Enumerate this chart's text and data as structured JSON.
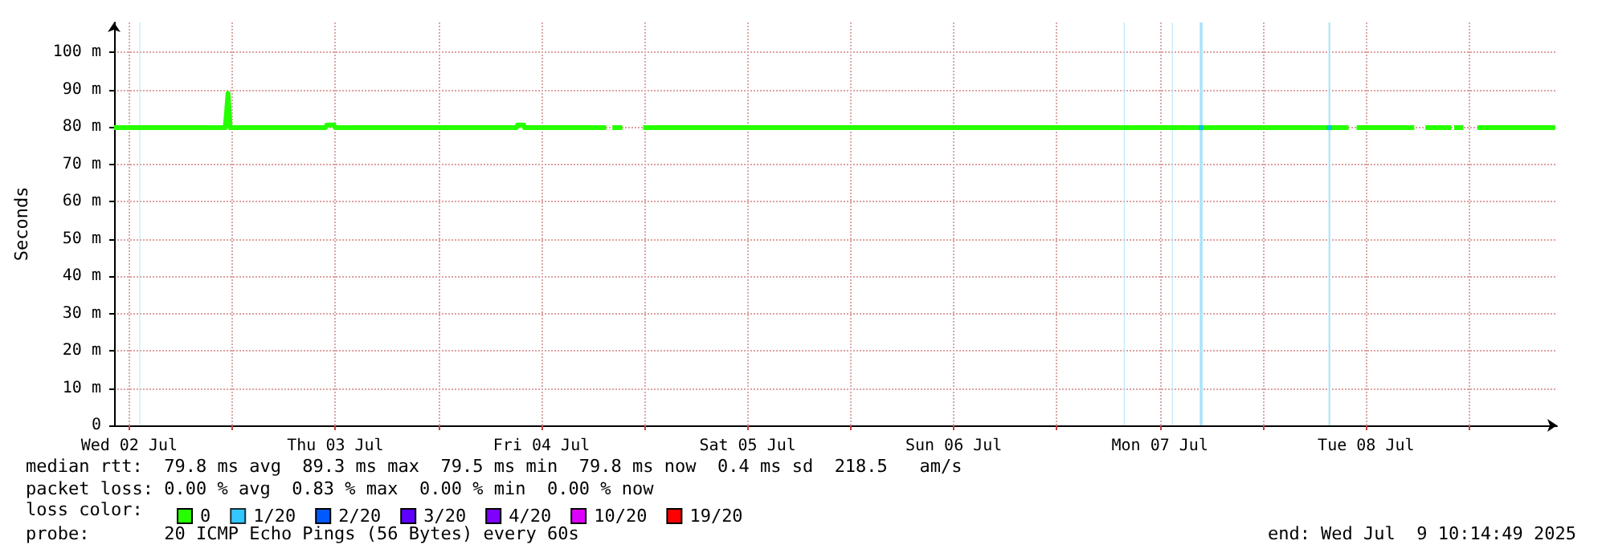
{
  "chart_data": {
    "type": "line",
    "ylabel": "Seconds",
    "xlim": [
      "2025-07-02T10:14",
      "2025-07-09T10:14"
    ],
    "xticks": [
      {
        "value": "2025-07-02T12:00",
        "label": "Wed 02 Jul"
      },
      {
        "value": "2025-07-03T00:00",
        "label": null
      },
      {
        "value": "2025-07-03T12:00",
        "label": "Thu 03 Jul"
      },
      {
        "value": "2025-07-04T00:00",
        "label": null
      },
      {
        "value": "2025-07-04T12:00",
        "label": "Fri 04 Jul"
      },
      {
        "value": "2025-07-05T00:00",
        "label": null
      },
      {
        "value": "2025-07-05T12:00",
        "label": "Sat 05 Jul"
      },
      {
        "value": "2025-07-06T00:00",
        "label": null
      },
      {
        "value": "2025-07-06T12:00",
        "label": "Sun 06 Jul"
      },
      {
        "value": "2025-07-07T00:00",
        "label": null
      },
      {
        "value": "2025-07-07T12:00",
        "label": "Mon 07 Jul"
      },
      {
        "value": "2025-07-08T00:00",
        "label": null
      },
      {
        "value": "2025-07-08T12:00",
        "label": "Tue 08 Jul"
      },
      {
        "value": "2025-07-09T00:00",
        "label": null
      }
    ],
    "ylim": [
      0,
      108
    ],
    "yticks": [
      0,
      {
        "value": 10,
        "label": "10 m"
      },
      {
        "value": 20,
        "label": "20 m"
      },
      {
        "value": 30,
        "label": "30 m"
      },
      {
        "value": 40,
        "label": "40 m"
      },
      {
        "value": 50,
        "label": "50 m"
      },
      {
        "value": 60,
        "label": "60 m"
      },
      {
        "value": 70,
        "label": "70 m"
      },
      {
        "value": 80,
        "label": "80 m"
      },
      {
        "value": 90,
        "label": "90 m"
      },
      {
        "value": 100,
        "label": "100 m"
      }
    ],
    "grid": true,
    "legend": "bottom",
    "legend_title": "loss color:",
    "series": [
      {
        "name": "0",
        "color": "#26ff00",
        "x": [
          "2025-07-02T10:14",
          "2025-07-02T23:10",
          "2025-07-02T23:18",
          "2025-07-02T23:30",
          "2025-07-02T23:45",
          "2025-07-03T10:52",
          "2025-07-03T11:00",
          "2025-07-03T11:50",
          "2025-07-03T11:58",
          "2025-07-04T09:05",
          "2025-07-04T09:12",
          "2025-07-04T09:55",
          "2025-07-04T10:00",
          "2025-07-04T19:32",
          "2025-07-04T19:55",
          "2025-07-04T20:15",
          "2025-07-04T21:25",
          "2025-07-04T22:30",
          "2025-07-04T23:50",
          "2025-07-08T09:58",
          "2025-07-08T10:25",
          "2025-07-08T10:54",
          "2025-07-08T17:37",
          "2025-07-08T18:15",
          "2025-07-08T18:55",
          "2025-07-08T21:55",
          "2025-07-08T22:05",
          "2025-07-08T22:15",
          "2025-07-08T23:20",
          "2025-07-09T00:00",
          "2025-07-09T00:58",
          "2025-07-09T10:02"
        ],
        "values": [
          79.8,
          79.8,
          83,
          89,
          79.8,
          79.8,
          80.5,
          80.5,
          79.8,
          79.8,
          80.5,
          80.5,
          79.8,
          79.8,
          null,
          79.8,
          79.8,
          null,
          79.8,
          79.8,
          null,
          79.8,
          79.8,
          null,
          79.8,
          79.8,
          null,
          79.8,
          79.8,
          null,
          79.8,
          79.8
        ]
      },
      {
        "name": "1/20",
        "color": "#00b8ff",
        "type": "scatter",
        "x": [
          "2025-07-07T16:48",
          "2025-07-08T07:44"
        ],
        "values": [
          79.8,
          79.8
        ]
      },
      {
        "name": "2/20",
        "color": "#0059ff"
      },
      {
        "name": "3/20",
        "color": "#5e00ff"
      },
      {
        "name": "4/20",
        "color": "#7e00ff"
      },
      {
        "name": "10/20",
        "color": "#dd00ff"
      },
      {
        "name": "19/20",
        "color": "#ff0000"
      }
    ],
    "bands": [
      {
        "axis": "x",
        "from": "2025-07-02T13:11",
        "to": "2025-07-02T13:16",
        "color": "#a8e4fa"
      },
      {
        "axis": "x",
        "from": "2025-07-07T07:48",
        "to": "2025-07-07T07:53",
        "color": "#a8e4fa"
      },
      {
        "axis": "x",
        "from": "2025-07-07T13:24",
        "to": "2025-07-07T13:29",
        "color": "#a8e4fa"
      },
      {
        "axis": "x",
        "from": "2025-07-07T16:38",
        "to": "2025-07-07T16:58",
        "color": "#a8e4fa"
      },
      {
        "axis": "x",
        "from": "2025-07-08T07:38",
        "to": "2025-07-08T07:50",
        "color": "#a8e4fa"
      }
    ],
    "annotations": [
      "median rtt:  79.8 ms avg  89.3 ms max  79.5 ms min  79.8 ms now  0.4 ms sd  218.5   am/s",
      "packet loss: 0.00 % avg  0.83 % max  0.00 % min  0.00 % now",
      "probe:       20 ICMP Echo Pings (56 Bytes) every 60s",
      "end: Wed Jul  9 10:14:49 2025"
    ]
  }
}
